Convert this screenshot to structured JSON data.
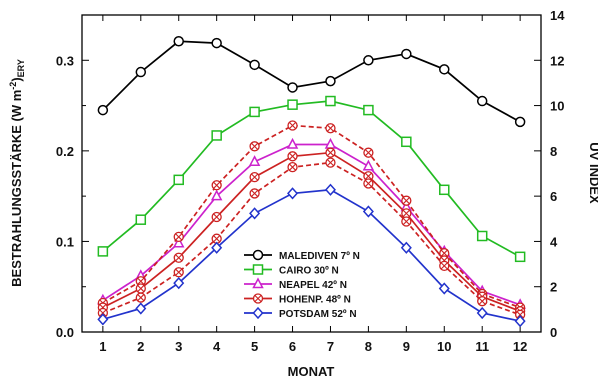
{
  "chart_data": {
    "type": "line",
    "xlabel": "MONAT",
    "ylabel_left": "BESTRAHLUNGSSTÄRKE (W m",
    "ylabel_left_sup": "-2",
    "ylabel_left_close": ")",
    "ylabel_left_sub": "ERY",
    "ylabel_right": "UV INDEX",
    "x_ticks": [
      "1",
      "2",
      "3",
      "4",
      "5",
      "6",
      "7",
      "8",
      "9",
      "10",
      "11",
      "12"
    ],
    "y_ticks_left": [
      "0.0",
      "0.1",
      "0.2",
      "0.3"
    ],
    "y_ticks_right": [
      "0",
      "2",
      "4",
      "6",
      "8",
      "10",
      "12",
      "14"
    ],
    "xlim": [
      0.45,
      12.55
    ],
    "ylim_left": [
      0,
      0.35
    ],
    "ylim_right": [
      0,
      14
    ],
    "x": [
      1,
      2,
      3,
      4,
      5,
      6,
      7,
      8,
      9,
      10,
      11,
      12
    ],
    "series": [
      {
        "name": "MALEDIVEN 7º N",
        "color": "#000000",
        "marker": "circle",
        "dashed": false,
        "values": [
          0.245,
          0.287,
          0.321,
          0.319,
          0.295,
          0.27,
          0.277,
          0.3,
          0.307,
          0.29,
          0.255,
          0.232
        ]
      },
      {
        "name": "CAIRO 30º N",
        "color": "#22bb22",
        "marker": "square",
        "dashed": false,
        "values": [
          0.089,
          0.124,
          0.168,
          0.217,
          0.243,
          0.251,
          0.255,
          0.245,
          0.21,
          0.157,
          0.106,
          0.083
        ]
      },
      {
        "name": "NEAPEL 42º N",
        "color": "#cc22cc",
        "marker": "triangle",
        "dashed": false,
        "values": [
          0.035,
          0.062,
          0.098,
          0.15,
          0.188,
          0.207,
          0.207,
          0.183,
          0.138,
          0.089,
          0.045,
          0.03
        ]
      },
      {
        "name": "",
        "color": "#cc2222",
        "marker": "xcircle",
        "dashed": true,
        "values": [
          0.032,
          0.056,
          0.105,
          0.162,
          0.205,
          0.228,
          0.225,
          0.198,
          0.145,
          0.087,
          0.042,
          0.027
        ]
      },
      {
        "name": "HOHENP. 48º N",
        "color": "#cc2222",
        "marker": "xcircle",
        "dashed": false,
        "values": [
          0.027,
          0.048,
          0.082,
          0.127,
          0.171,
          0.194,
          0.198,
          0.172,
          0.131,
          0.079,
          0.039,
          0.023
        ]
      },
      {
        "name": "",
        "color": "#cc2222",
        "marker": "xcircle",
        "dashed": true,
        "values": [
          0.021,
          0.038,
          0.066,
          0.103,
          0.153,
          0.182,
          0.187,
          0.164,
          0.122,
          0.073,
          0.034,
          0.019
        ]
      },
      {
        "name": "POTSDAM 52º N",
        "color": "#2233cc",
        "marker": "diamond",
        "dashed": false,
        "values": [
          0.014,
          0.026,
          0.054,
          0.093,
          0.131,
          0.153,
          0.157,
          0.133,
          0.093,
          0.048,
          0.021,
          0.012
        ]
      }
    ],
    "legend_placement": "lower-center",
    "grid": false
  }
}
